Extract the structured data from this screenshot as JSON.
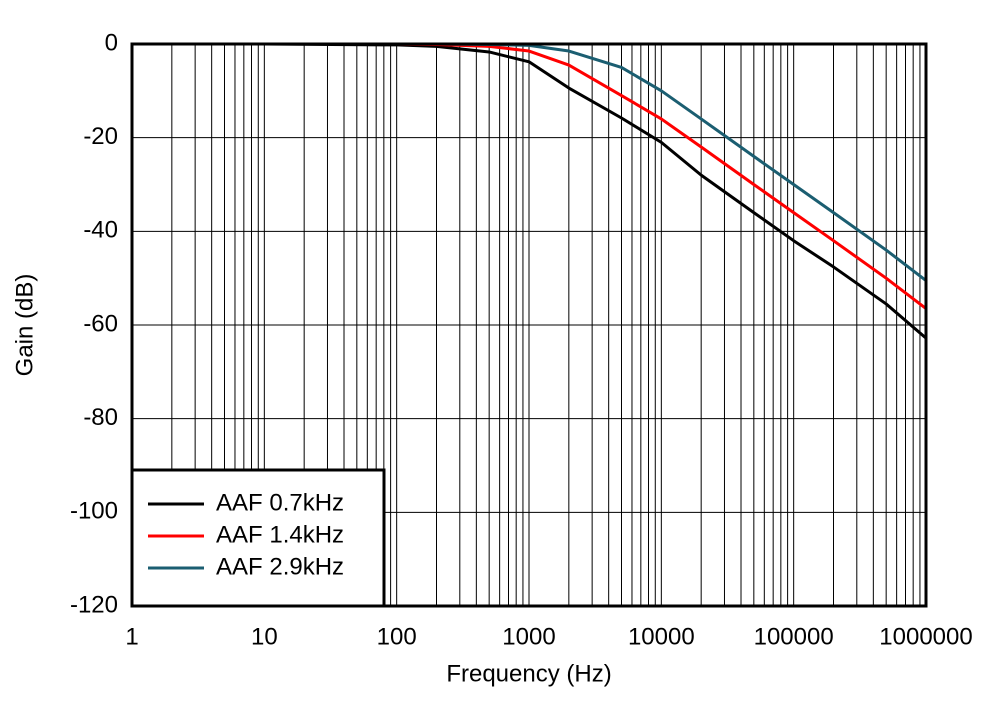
{
  "chart_data": {
    "type": "line",
    "x_label": "Frequency (Hz)",
    "y_label": "Gain (dB)",
    "xscale": "log",
    "grid": true,
    "legend": "lower left",
    "x": [
      1,
      10,
      100,
      200,
      500,
      1000,
      2000,
      5000,
      10000,
      20000,
      50000,
      100000,
      200000,
      500000,
      1000000
    ],
    "series": [
      {
        "name": "AAF 0.7kHz",
        "color": "#000000",
        "values": [
          0,
          0,
          -0.2,
          -0.5,
          -1.7,
          -3.8,
          -9.4,
          -15.8,
          -21,
          -28,
          -36,
          -42,
          -47.6,
          -55.5,
          -62.8
        ]
      },
      {
        "name": "AAF 1.4kHz",
        "color": "#ff0000",
        "values": [
          0,
          0,
          0,
          -0.1,
          -0.5,
          -1.5,
          -4.5,
          -11,
          -16,
          -22,
          -30,
          -36,
          -42,
          -50,
          -56.5
        ]
      },
      {
        "name": "AAF 2.9kHz",
        "color": "#1b5e71",
        "values": [
          0,
          0,
          0,
          0,
          -0.1,
          -0.3,
          -1.5,
          -5,
          -10,
          -16,
          -24,
          -30,
          -36,
          -44,
          -50.5
        ]
      }
    ],
    "xlim": [
      1,
      1000000
    ],
    "xticks": [
      1,
      10,
      100,
      1000,
      10000,
      100000,
      1000000
    ],
    "ylim": [
      -120,
      0
    ],
    "yticks": [
      -120,
      -100,
      -80,
      -60,
      -40,
      -20,
      0
    ]
  }
}
